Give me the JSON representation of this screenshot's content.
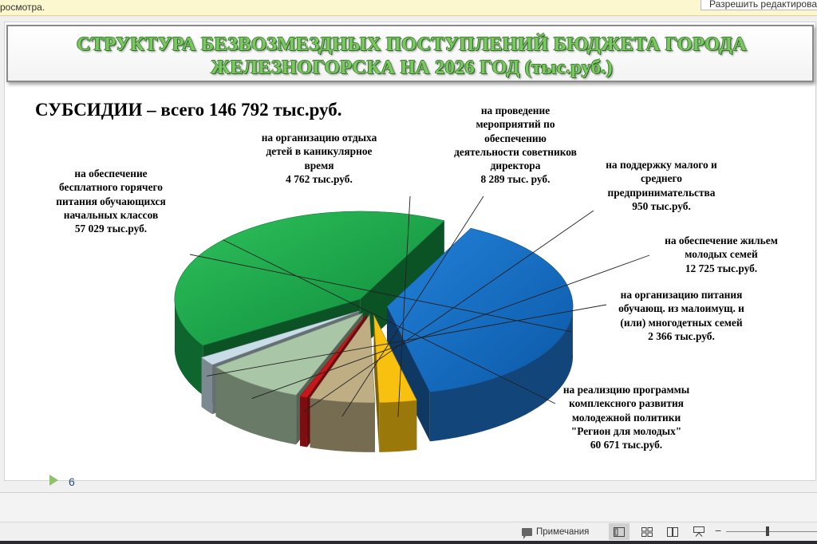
{
  "protected_view": {
    "message": "росмотра.",
    "enable_editing_label": "Разрешить редактирование"
  },
  "slide": {
    "title_line_1": "СТРУКТУРА БЕЗВОЗМЕЗДНЫХ ПОСТУПЛЕНИЙ БЮДЖЕТА ГОРОДА",
    "title_line_2": "ЖЕЛЕЗНОГОРСКА  НА 2026 ГОД (тыс.руб.)",
    "subtitle": "СУБСИДИИ – всего 146 792 тыс.руб.",
    "number": "6"
  },
  "chart_data": {
    "type": "pie",
    "title": "СУБСИДИИ – всего 146 792 тыс.руб.",
    "unit": "тыс.руб.",
    "total": 146792,
    "slices": [
      {
        "label": "на реализцию программы комплексного развития молодежной политики \"Регион для молодых\"",
        "value": 60671,
        "color": "#16a34a",
        "text": "на реализцию программы\nкомплексного развития\nмолодежной политики\n\"Регион для молодых\"\n60 671 тыс.руб."
      },
      {
        "label": "на обеспечение бесплатного горячего питания обучающихся начальных классов",
        "value": 57029,
        "color": "#1d6fc4",
        "text": "на обеспечение\nбесплатного горячего\nпитания обучающихся\nначальных классов\n57 029 тыс.руб."
      },
      {
        "label": "на организацию отдыха детей в каникулярное время",
        "value": 4762,
        "color": "#f8c10f",
        "text": "на организацию отдыха\nдетей в каникулярное\nвремя\n4 762 тыс.руб."
      },
      {
        "label": "на проведение мероприятий по обеспечению деятельности советников директора",
        "value": 8289,
        "color": "#bfae84",
        "text": "на проведение\nмероприятий по\nобеспечению\nдеятельности советников\nдиректора\n8 289 тыс. руб."
      },
      {
        "label": "на поддержку малого и среднего предпринимательства",
        "value": 950,
        "color": "#c8171b",
        "text": "на поддержку малого и\nсреднего\nпредпринимательства\n950 тыс.руб."
      },
      {
        "label": "на обеспечение жильем молодых семей",
        "value": 12725,
        "color": "#a9c6a6",
        "text": "на обеспечение жильем\nмолодых семей\n12 725 тыс.руб."
      },
      {
        "label": "на организацию питания обучающ. из малоимущ. и (или) многодетных семей",
        "value": 2366,
        "color": "#c9dde8",
        "text": "на организацию питания\nобучающ. из малоимущ. и\n(или) многодетных семей\n2 366 тыс.руб."
      }
    ]
  },
  "status_bar": {
    "notes_label": "Примечания"
  },
  "colors": {
    "title_green": "#7bc862",
    "protected_bar": "#fdf7cf"
  }
}
